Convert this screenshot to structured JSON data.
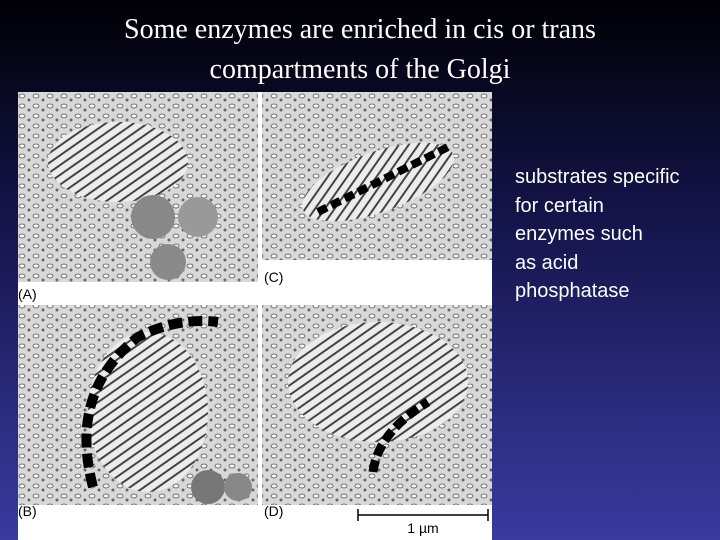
{
  "header": {
    "title_lines": [
      "Some enzymes are enriched in cis or trans",
      "compartments of the Golgi"
    ]
  },
  "figure": {
    "panels": [
      {
        "label": "(A)"
      },
      {
        "label": "(C)"
      },
      {
        "label": "(B)"
      },
      {
        "label": "(D)"
      }
    ],
    "scale_bar": "1 µm"
  },
  "body": {
    "lines": [
      "substrates specific",
      "for certain",
      "enzymes such",
      "as acid",
      "phosphatase"
    ]
  }
}
